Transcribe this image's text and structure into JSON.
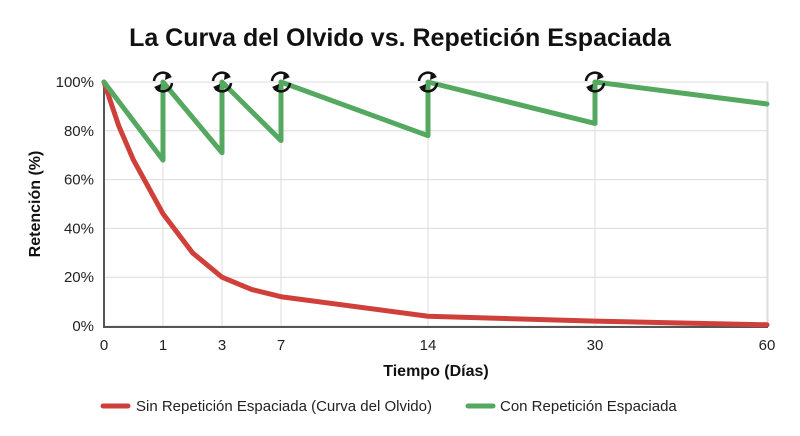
{
  "chart_data": {
    "type": "line",
    "title": "La Curva del Olvido vs. Repetición Espaciada",
    "xlabel": "Tiempo (Días)",
    "ylabel": "Retención (%)",
    "x_ticks": [
      0,
      1,
      3,
      7,
      14,
      30,
      60
    ],
    "y_ticks": [
      "0%",
      "20%",
      "40%",
      "60%",
      "80%",
      "100%"
    ],
    "ylim": [
      0,
      100
    ],
    "xlim": [
      0,
      60
    ],
    "x_scale": "non-uniform (ticks at 0, 1, 3, 7, 14, 30, 60)",
    "grid": true,
    "legend_position": "bottom",
    "review_markers": {
      "icon": "refresh-icon",
      "x": [
        1,
        3,
        7,
        14,
        30
      ]
    },
    "series": [
      {
        "name": "Sin Repetición Espaciada (Curva del Olvido)",
        "color": "#d0403a",
        "x": [
          0,
          0.25,
          0.5,
          1,
          2,
          3,
          5,
          7,
          14,
          30,
          60
        ],
        "y": [
          100,
          82,
          68,
          46,
          30,
          20,
          15,
          12,
          4,
          2,
          0.5
        ]
      },
      {
        "name": "Con Repetición Espaciada",
        "color": "#55a860",
        "x": [
          0,
          1,
          1,
          3,
          3,
          7,
          7,
          14,
          14,
          30,
          30,
          60
        ],
        "y": [
          100,
          68,
          100,
          71,
          100,
          76,
          100,
          78,
          100,
          83,
          100,
          91
        ]
      }
    ]
  }
}
